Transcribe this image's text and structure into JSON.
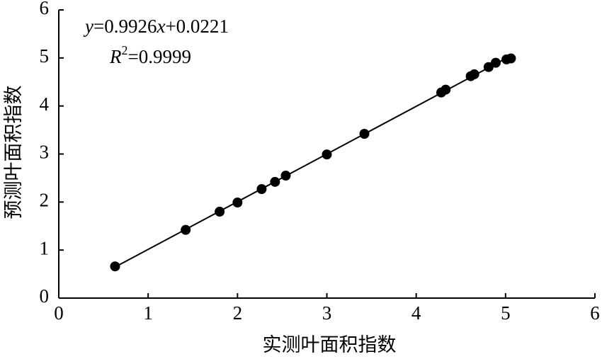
{
  "chart_data": {
    "type": "scatter",
    "xlabel": "实测叶面积指数",
    "ylabel": "预测叶面积指数",
    "x": [
      0.63,
      1.42,
      1.8,
      2.0,
      2.27,
      2.42,
      2.54,
      3.0,
      3.42,
      4.28,
      4.33,
      4.61,
      4.65,
      4.81,
      4.89,
      5.01,
      5.06
    ],
    "values": [
      0.66,
      1.42,
      1.8,
      1.99,
      2.27,
      2.42,
      2.55,
      2.99,
      3.42,
      4.28,
      4.34,
      4.62,
      4.66,
      4.81,
      4.9,
      4.97,
      4.99
    ],
    "color": "#000000",
    "trendline": {
      "x": [
        0.63,
        5.06
      ],
      "y": [
        0.647,
        5.045
      ]
    },
    "equation": [
      "y",
      "=0.9926",
      "x",
      "+0.0221"
    ],
    "r_squared": [
      "R",
      "2",
      "=0.9999"
    ],
    "xlim": [
      0,
      6
    ],
    "xticks": [
      0,
      1,
      2,
      3,
      4,
      5,
      6
    ],
    "ylim": [
      0,
      6
    ],
    "yticks": [
      0,
      1,
      2,
      3,
      4,
      5,
      6
    ]
  }
}
